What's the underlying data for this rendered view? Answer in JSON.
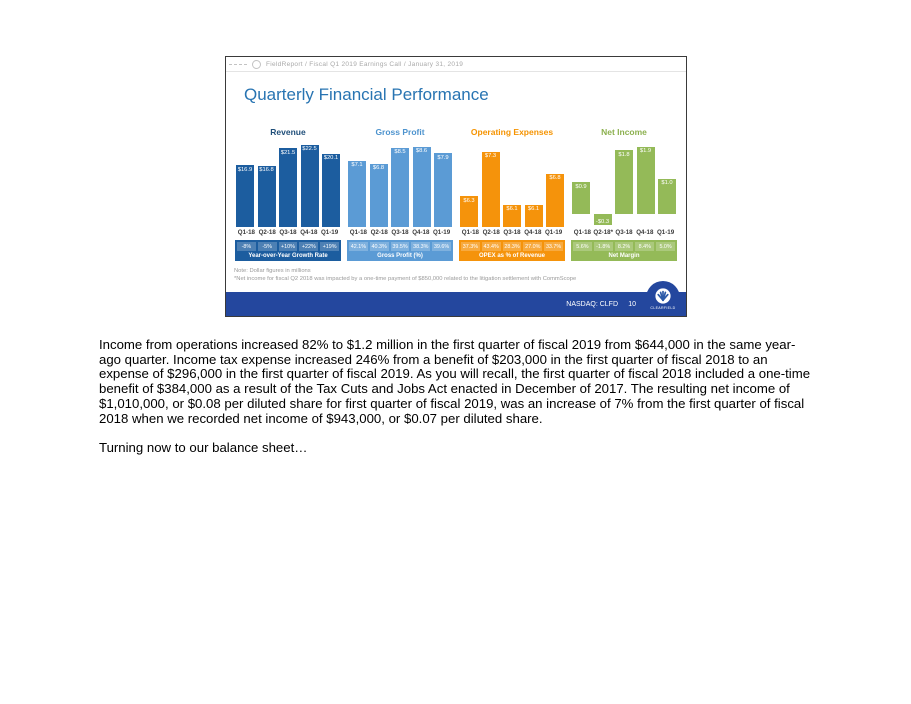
{
  "slide": {
    "breadcrumb": "FieldReport  /  Fiscal Q1 2019 Earnings Call  /  January 31, 2019",
    "title": "Quarterly Financial Performance",
    "colors": {
      "title_blue": "#2874B2",
      "footer_bar_blue": "#24479E",
      "logo_blue": "#2C5AA8"
    },
    "footer": {
      "note_line1": "Note: Dollar figures in millions",
      "note_line2": "*Net income for fiscal Q2 2018 was impacted by a one-time payment of $850,000 related to the litigation settlement with CommScope",
      "ticker": "NASDAQ: CLFD",
      "page_number": "10",
      "logo_text": "CLEARFIELD"
    }
  },
  "chart_data": [
    {
      "type": "bar",
      "title": "Revenue",
      "categories": [
        "Q1-18",
        "Q2-18",
        "Q3-18",
        "Q4-18",
        "Q1-19"
      ],
      "values": [
        16.9,
        16.8,
        21.5,
        22.5,
        20.1
      ],
      "value_labels": [
        "$16.9",
        "$16.8",
        "$21.5",
        "$22.5",
        "$20.1"
      ],
      "footer_values": [
        "-8%",
        "-5%",
        "+10%",
        "+22%",
        "+19%"
      ],
      "footer_label": "Year-over-Year Growth Rate",
      "ylim": [
        0,
        23
      ],
      "color": "#1C5D9F",
      "title_color": "#1F4E79",
      "grid": false,
      "legend": "none"
    },
    {
      "type": "bar",
      "title": "Gross Profit",
      "categories": [
        "Q1-18",
        "Q2-18",
        "Q3-18",
        "Q4-18",
        "Q1-19"
      ],
      "values": [
        7.1,
        6.8,
        8.5,
        8.6,
        7.9
      ],
      "value_labels": [
        "$7.1",
        "$6.8",
        "$8.5",
        "$8.6",
        "$7.9"
      ],
      "footer_values": [
        "42.1%",
        "40.3%",
        "39.5%",
        "38.3%",
        "39.6%"
      ],
      "footer_label": "Gross Profit (%)",
      "ylim": [
        0,
        9
      ],
      "color": "#5B9BD5",
      "title_color": "#4D93CE",
      "grid": false,
      "legend": "none"
    },
    {
      "type": "bar",
      "title": "Operating Expenses",
      "categories": [
        "Q1-18",
        "Q2-18",
        "Q3-18",
        "Q4-18",
        "Q1-19"
      ],
      "values": [
        6.3,
        7.3,
        6.1,
        6.1,
        6.8
      ],
      "value_labels": [
        "$6.3",
        "$7.3",
        "$6.1",
        "$6.1",
        "$6.8"
      ],
      "footer_values": [
        "37.3%",
        "43.4%",
        "28.3%",
        "27.0%",
        "33.7%"
      ],
      "footer_label": "OPEX as % of Revenue",
      "ylim": [
        5.6,
        7.5
      ],
      "color": "#F5930B",
      "title_color": "#F59300",
      "grid": false,
      "legend": "none"
    },
    {
      "type": "bar",
      "title": "Net Income",
      "categories": [
        "Q1-18",
        "Q2-18*",
        "Q3-18",
        "Q4-18",
        "Q1-19"
      ],
      "values": [
        0.9,
        -0.3,
        1.8,
        1.9,
        1.0
      ],
      "value_labels": [
        "$0.9",
        "-$0.3",
        "$1.8",
        "$1.9",
        "$1.0"
      ],
      "footer_values": [
        "5.6%",
        "-1.8%",
        "8.2%",
        "8.4%",
        "5.0%"
      ],
      "footer_label": "Net Margin",
      "ylim": [
        -0.35,
        2.0
      ],
      "color": "#94BA58",
      "title_color": "#8CB04F",
      "grid": false,
      "legend": "none"
    }
  ],
  "document": {
    "paragraph1": "Income from operations increased 82% to $1.2 million in the first quarter of fiscal 2019 from $644,000 in the same year-ago quarter. Income tax expense increased 246% from a benefit of $203,000 in the first quarter of fiscal 2018 to an expense of $296,000 in the first quarter of fiscal 2019. As you will recall, the first quarter of fiscal 2018 included a one-time benefit of $384,000 as a result of the Tax Cuts and Jobs Act enacted in December of 2017. The resulting net income of $1,010,000, or $0.08 per diluted share for first quarter of fiscal 2019, was an increase of 7% from the first quarter of fiscal 2018 when we recorded net income of $943,000, or $0.07 per diluted share.",
    "paragraph2": "Turning now to our balance sheet…"
  }
}
